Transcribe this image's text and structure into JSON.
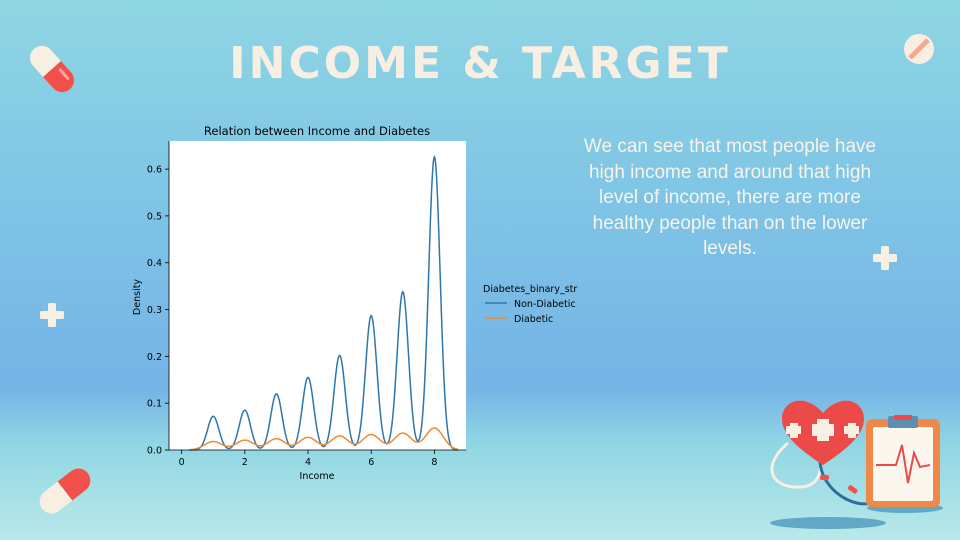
{
  "slide": {
    "title": "INCOME & TARGET",
    "body_text": "We can see that most people have high income and around that high level of income, there are more healthy people than on the lower levels."
  },
  "colors": {
    "title": "#f6efe2",
    "body_text": "#f8f4ea",
    "non_diabetic": "#2b77b0",
    "diabetic": "#f08a2c",
    "pill_red": "#f2514b",
    "pill_cream": "#f6efe2",
    "heart_red": "#ec4a48",
    "clipboard_orange": "#f0884a"
  },
  "icons": [
    "pill-icon",
    "pill-icon",
    "round-pill-icon",
    "plus-icon",
    "plus-icon",
    "heart-icon",
    "stethoscope-icon",
    "clipboard-icon"
  ],
  "chart_data": {
    "type": "line",
    "title": "Relation between Income and Diabetes",
    "xlabel": "Income",
    "ylabel": "Density",
    "xlim": [
      -0.4,
      9.0
    ],
    "ylim": [
      0,
      0.66
    ],
    "xticks": [
      0,
      2,
      4,
      6,
      8
    ],
    "yticks": [
      0.0,
      0.1,
      0.2,
      0.3,
      0.4,
      0.5,
      0.6
    ],
    "grid": false,
    "legend": {
      "title": "Diabetes_binary_str",
      "placement": "right, outside"
    },
    "series": [
      {
        "name": "Non-Diabetic",
        "peaks_x": [
          1,
          2,
          3,
          4,
          5,
          6,
          7,
          8
        ],
        "peaks_y": [
          0.072,
          0.085,
          0.12,
          0.155,
          0.202,
          0.287,
          0.338,
          0.626
        ]
      },
      {
        "name": "Diabetic",
        "peaks_x": [
          1,
          2,
          3,
          4,
          5,
          6,
          7,
          8
        ],
        "peaks_y": [
          0.018,
          0.021,
          0.024,
          0.027,
          0.03,
          0.033,
          0.036,
          0.047
        ]
      }
    ]
  }
}
